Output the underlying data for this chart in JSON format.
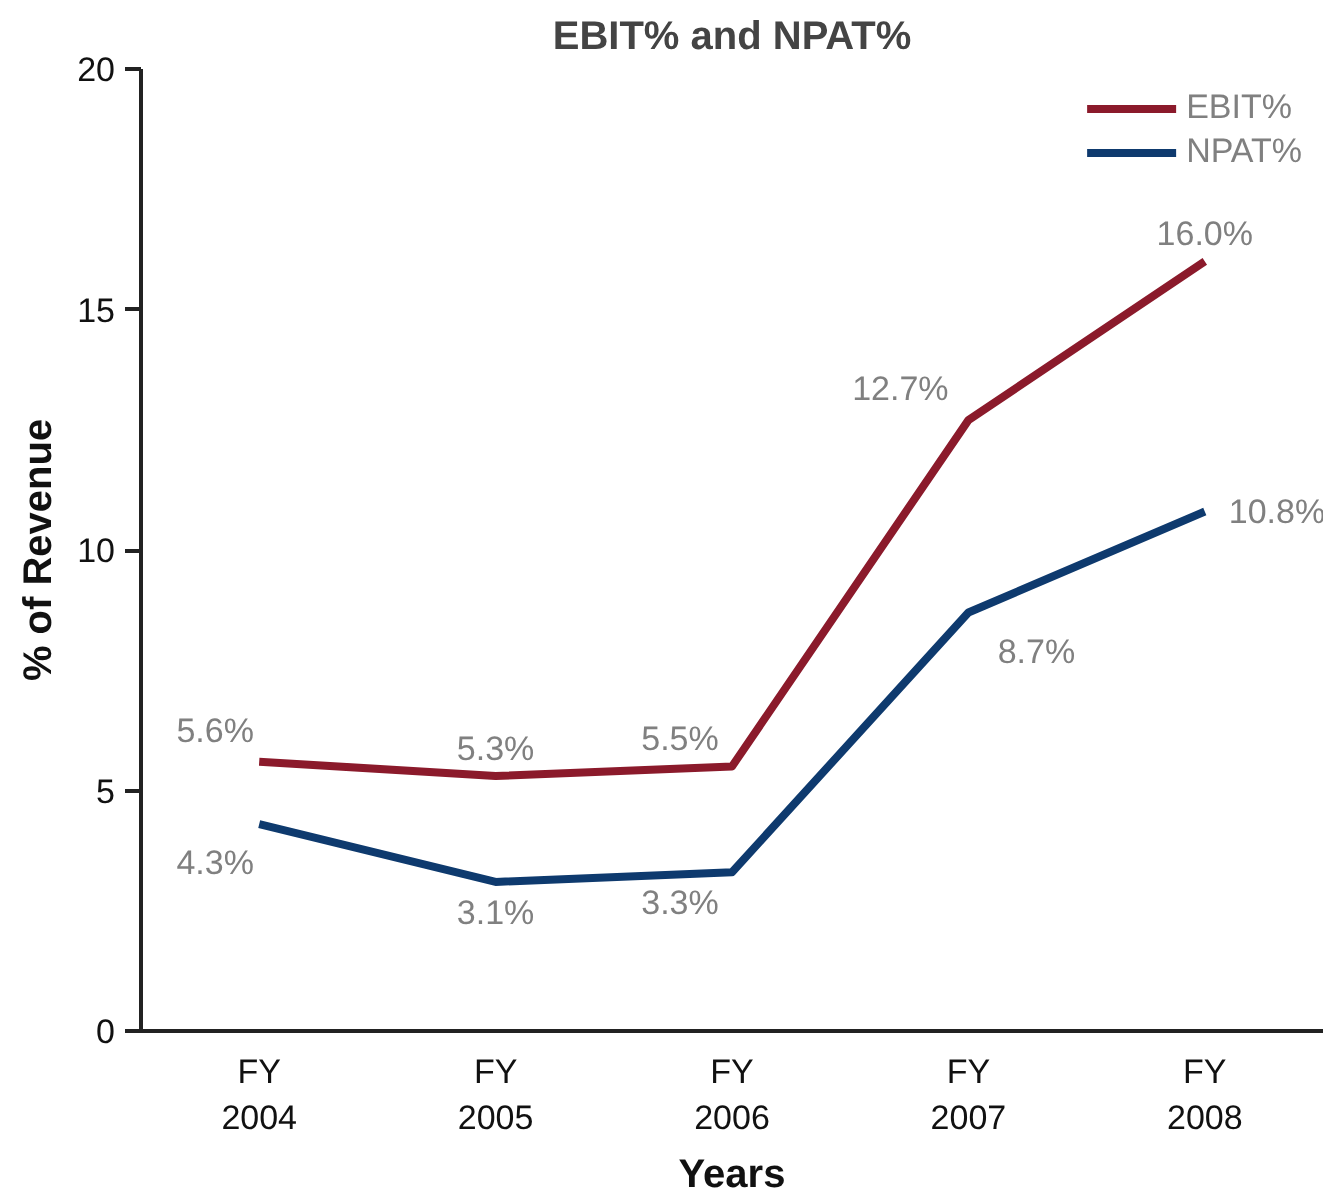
{
  "chart_data": {
    "type": "line",
    "title": "EBIT% and NPAT%",
    "xlabel": "Years",
    "ylabel": "% of Revenue",
    "categories": [
      "FY\n2004",
      "FY\n2005",
      "FY\n2006",
      "FY\n2007",
      "FY\n2008"
    ],
    "series": [
      {
        "name": "EBIT%",
        "color": "#8b1a2b",
        "values": [
          5.6,
          5.3,
          5.5,
          12.7,
          16.0
        ],
        "value_labels": [
          "5.6%",
          "5.3%",
          "5.5%",
          "12.7%",
          "16.0%"
        ]
      },
      {
        "name": "NPAT%",
        "color": "#0e3a6e",
        "values": [
          4.3,
          3.1,
          3.3,
          8.7,
          10.8
        ],
        "value_labels": [
          "4.3%",
          "3.1%",
          "3.3%",
          "8.7%",
          "10.8%"
        ]
      }
    ],
    "ylim": [
      0,
      20
    ],
    "yticks": [
      0,
      5,
      10,
      15,
      20
    ],
    "grid": false,
    "legend": "top right",
    "marker": "none",
    "line_style": "solid"
  }
}
